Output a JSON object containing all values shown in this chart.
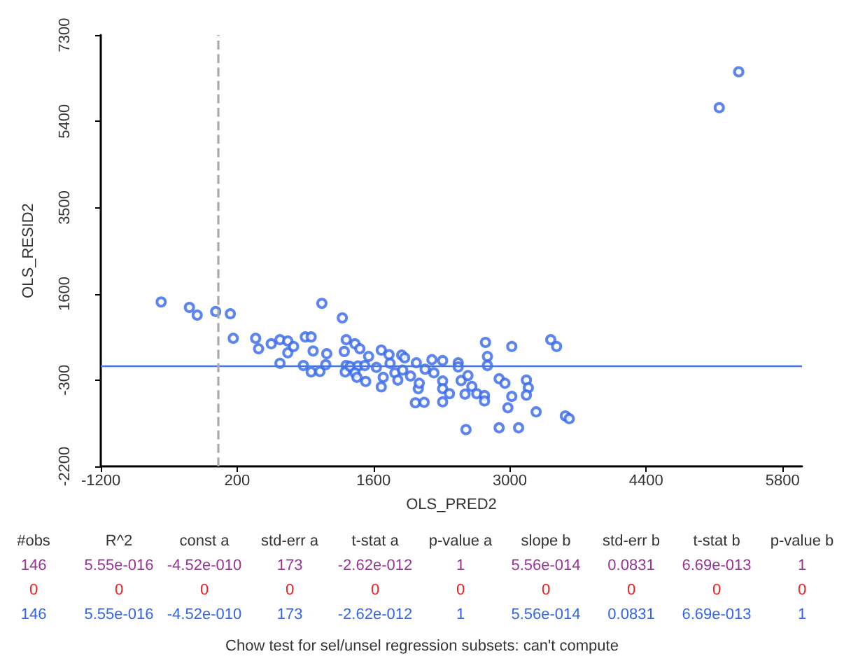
{
  "chart_data": {
    "type": "scatter",
    "xlabel": "OLS_PRED2",
    "ylabel": "OLS_RESID2",
    "xlim": [
      -1200,
      6000
    ],
    "xticks": [
      -1200,
      200,
      1600,
      3000,
      4400,
      5800
    ],
    "ylim": [
      -2200,
      7300
    ],
    "yticks": [
      -2200,
      -300,
      1600,
      3500,
      5400,
      7300
    ],
    "grid": false,
    "marker": "circle",
    "series": [
      {
        "color": "#3366ee",
        "x": [
          -580,
          -290,
          -210,
          -20,
          130,
          1070,
          1280,
          160,
          390,
          420,
          550,
          640,
          720,
          720,
          780,
          640,
          900,
          960,
          980,
          1120,
          1320,
          1300,
          1410,
          1460,
          880,
          960,
          1050,
          1110,
          1320,
          1310,
          1360,
          1440,
          1510,
          1410,
          1430,
          1520,
          1550,
          1680,
          1630,
          1700,
          1680,
          1760,
          1770,
          1820,
          1850,
          1890,
          1920,
          1900,
          1980,
          2040,
          2060,
          2070,
          2030,
          2120,
          2130,
          2200,
          2220,
          2310,
          2310,
          2310,
          2310,
          2380,
          2470,
          2470,
          2500,
          2570,
          2540,
          2610,
          2550,
          2660,
          2740,
          2740,
          2750,
          2770,
          2770,
          2890,
          2950,
          2890,
          3020,
          3020,
          2980,
          3090,
          3170,
          3190,
          3170,
          3420,
          3480,
          3270,
          3570,
          3610,
          5150,
          5350
        ],
        "values": [
          1420,
          1300,
          1130,
          1210,
          1160,
          1390,
          1070,
          620,
          620,
          390,
          500,
          590,
          560,
          300,
          440,
          70,
          650,
          650,
          340,
          280,
          590,
          330,
          500,
          390,
          20,
          -120,
          -110,
          40,
          20,
          -120,
          0,
          10,
          20,
          -140,
          -240,
          -330,
          220,
          360,
          -20,
          -240,
          -450,
          260,
          70,
          -140,
          -300,
          250,
          190,
          -80,
          -210,
          80,
          -490,
          -370,
          -800,
          -790,
          -60,
          150,
          -140,
          130,
          -320,
          -490,
          -780,
          -600,
          80,
          -10,
          -310,
          -200,
          -610,
          -440,
          -1390,
          -600,
          -640,
          -760,
          530,
          220,
          20,
          -270,
          -370,
          -1350,
          440,
          -660,
          -910,
          -1350,
          -300,
          -470,
          -630,
          590,
          440,
          -1000,
          -1090,
          -1150,
          5700,
          6490
        ]
      }
    ],
    "ref_lines": [
      {
        "axis": "y",
        "value": 0,
        "color": "#4477dd",
        "line_style": "solid"
      },
      {
        "axis": "x",
        "value": 0,
        "color": "#aaaaaa",
        "line_style": "dashed"
      }
    ],
    "annotations": [
      "#obs",
      "R^2",
      "const a",
      "std-err a",
      "t-stat a",
      "p-value a",
      "slope b",
      "std-err b",
      "t-stat b",
      "p-value b",
      "146",
      "5.55e-016",
      "-4.52e-010",
      "173",
      "-2.62e-012",
      "1",
      "5.56e-014",
      "0.0831",
      "6.69e-013",
      "1",
      "0",
      "0",
      "0",
      "0",
      "0",
      "0",
      "0",
      "0",
      "0",
      "0",
      "146",
      "5.55e-016",
      "-4.52e-010",
      "173",
      "-2.62e-012",
      "1",
      "5.56e-014",
      "0.0831",
      "6.69e-013",
      "1",
      "Chow test for sel/unsel regression subsets: can't compute"
    ]
  }
}
